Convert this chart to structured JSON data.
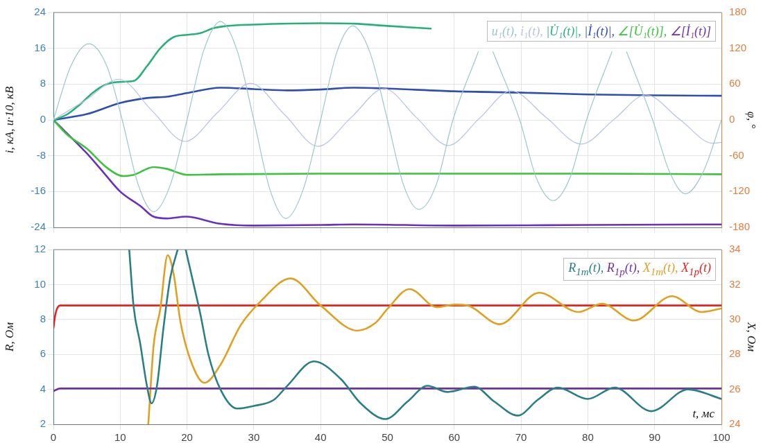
{
  "chart_data": [
    {
      "type": "line",
      "ylabel": "i, кА, u·10, кВ",
      "y2label": "φ, °",
      "xlim": [
        0,
        100
      ],
      "xticks": [
        0,
        10,
        20,
        30,
        40,
        50,
        60,
        70,
        80,
        90,
        100
      ],
      "ylim": [
        -24,
        24
      ],
      "yticks": [
        -24,
        -16,
        -8,
        0,
        8,
        16,
        24
      ],
      "y2lim": [
        -180,
        180
      ],
      "y2ticks": [
        -180,
        -120,
        -60,
        0,
        60,
        120,
        180
      ],
      "grid": true,
      "legend": "top right",
      "tick_labels": "y",
      "series": [
        {
          "name": "u₁(t),",
          "color": "#9cc6cc",
          "x": [
            0,
            2.6,
            5.3,
            8,
            10.3,
            12.7,
            15,
            17.5,
            20,
            22.5,
            25,
            27.5,
            30,
            32.4,
            34.8,
            37.4,
            40,
            42.4,
            44.8,
            47.4,
            50,
            52.4,
            54.7,
            57.3,
            59.8,
            63.6,
            64.7,
            65.8,
            69.8,
            72.3,
            74.8,
            77.3,
            79.8,
            83.6,
            84.7,
            85.8,
            89.7,
            92.2,
            94.6,
            97.3,
            100
          ],
          "values": [
            0,
            12,
            17,
            12,
            0,
            -14.5,
            -20.5,
            -14.5,
            0,
            15.5,
            22,
            15.5,
            0,
            -15.5,
            -22,
            -15.5,
            0,
            15,
            21,
            15,
            0,
            -14.5,
            -20,
            -14.5,
            0,
            15.2,
            null,
            15.2,
            0,
            -13,
            -18,
            -13,
            0,
            15.2,
            null,
            15.2,
            0,
            -11.5,
            -16.5,
            -11.5,
            0
          ]
        },
        {
          "name": "i₁(t),",
          "color": "#b4c2e2",
          "x": [
            0,
            4.9,
            9.8,
            14.8,
            19.7,
            24.6,
            29.5,
            34.6,
            39.6,
            44.6,
            49.5,
            54.3,
            59.1,
            63.8,
            68.5,
            73.8,
            79,
            83.9,
            88.7,
            93.7,
            98.7,
            100
          ],
          "values": [
            0,
            4.5,
            9.1,
            2,
            -4.8,
            1.7,
            8.2,
            1.2,
            -5.9,
            0.6,
            7,
            0.6,
            -5.7,
            0.4,
            6.5,
            0.5,
            -5.4,
            0.1,
            5.6,
            0.2,
            -5.2,
            -5
          ]
        },
        {
          "name": "|U̇₁(t)|,",
          "color": "#27b07a",
          "x": [
            0,
            2,
            4,
            6,
            8,
            10,
            12,
            14,
            16,
            18,
            20,
            22,
            24,
            26,
            30,
            40,
            45,
            50,
            56.5
          ],
          "values": [
            0,
            1.2,
            3.5,
            6.2,
            8,
            8.5,
            8.7,
            12,
            16,
            18.5,
            19,
            19.4,
            20.5,
            21,
            21.3,
            21.6,
            21.5,
            21,
            20.4
          ]
        },
        {
          "name": "|İ₁(t)|,",
          "color": "#2f4fb0",
          "x": [
            0,
            5,
            10,
            14,
            17,
            20,
            25,
            30,
            35,
            40,
            45,
            50,
            60,
            70,
            80,
            90,
            100
          ],
          "values": [
            0,
            1.3,
            3.8,
            4.9,
            5.2,
            6,
            7.2,
            6.9,
            6.6,
            6.8,
            7.2,
            7,
            6.4,
            6.1,
            5.7,
            5.5,
            5.4
          ]
        },
        {
          "name": "∠[U̇₁(t)],",
          "color": "#3cc23c",
          "axis": "y2",
          "x": [
            0,
            2,
            5,
            8,
            10.5,
            12,
            15,
            17,
            20,
            25,
            40,
            60,
            80,
            100
          ],
          "values": [
            0,
            -24,
            -48,
            -80,
            -94,
            -92,
            -79,
            -82,
            -92,
            -91,
            -90,
            -90,
            -90,
            -91
          ]
        },
        {
          "name": "∠[İ₁(t)]",
          "color": "#6a2fc0",
          "axis": "y2",
          "x": [
            0,
            5,
            7.5,
            10,
            13,
            15,
            17,
            19.8,
            25,
            30,
            40,
            45,
            60,
            80,
            100
          ],
          "values": [
            0,
            -56,
            -88,
            -120,
            -144,
            -162,
            -165,
            -162,
            -174,
            -177,
            -176,
            -175,
            -177,
            -176,
            -175
          ]
        }
      ]
    },
    {
      "type": "line",
      "xlabel": "t, мс",
      "ylabel": "R, Ом",
      "y2label": "X, Ом",
      "xlim": [
        0,
        100
      ],
      "xticks": [
        0,
        10,
        20,
        30,
        40,
        50,
        60,
        70,
        80,
        90,
        100
      ],
      "ylim": [
        2,
        12
      ],
      "yticks": [
        2,
        4,
        6,
        8,
        10,
        12
      ],
      "y2lim": [
        24,
        34
      ],
      "y2ticks": [
        24,
        26,
        28,
        30,
        32,
        34
      ],
      "grid": true,
      "legend": "top right",
      "series": [
        {
          "name": "R$_{1т}$(t),",
          "color": "#2a7f86",
          "x": [
            11.35,
            12,
            13,
            14,
            14.7,
            15.5,
            16.5,
            17.5,
            18.6,
            19.2,
            19.8,
            21,
            22,
            23.2,
            25,
            27.5,
            30,
            33,
            35,
            39,
            43,
            46,
            49.7,
            53,
            56,
            59,
            63,
            66,
            69.5,
            72.5,
            75.5,
            80,
            84,
            89.5,
            95,
            100
          ],
          "values": [
            12,
            8.75,
            6.6,
            4.2,
            3.2,
            4.2,
            7.6,
            10.4,
            12,
            null,
            12,
            10,
            8.3,
            6,
            4,
            2.9,
            3.05,
            3.4,
            4.2,
            5.6,
            4.6,
            3.2,
            2.3,
            3.3,
            4.2,
            3.85,
            4.15,
            3.3,
            2.5,
            3.4,
            4.1,
            3.45,
            4.1,
            2.75,
            4,
            3.45
          ]
        },
        {
          "name": "R$_{1р}$(t),",
          "color": "#7030a0",
          "x": [
            0,
            1,
            100
          ],
          "values": [
            3.9,
            4.05,
            4.05
          ]
        },
        {
          "name": "X$_{1т}$(t),",
          "color": "#e0a020",
          "axis": "y2",
          "x": [
            14.2,
            15,
            16,
            17.1,
            18,
            19,
            20.5,
            22.6,
            25,
            28,
            31,
            35.5,
            40,
            45.5,
            48.2,
            50,
            53.3,
            57.4,
            60.1,
            62,
            66.8,
            72.7,
            78.6,
            82.1,
            86.9,
            92.6,
            97,
            100
          ],
          "values": [
            24,
            28.5,
            30.6,
            33.68,
            32.6,
            29.9,
            27.7,
            26.37,
            27.4,
            29.65,
            31.03,
            32.35,
            30.8,
            29.36,
            29.8,
            30.6,
            31.74,
            30.7,
            30.85,
            30.8,
            29.73,
            31.53,
            30.43,
            30.9,
            29.94,
            31.33,
            30.43,
            30.63
          ]
        },
        {
          "name": "X$_{1р}$(t)",
          "color": "#e8221e",
          "axis": "y2",
          "x": [
            0,
            0.3,
            1,
            100
          ],
          "values": [
            29.5,
            30.3,
            30.8,
            30.8
          ]
        }
      ]
    }
  ]
}
